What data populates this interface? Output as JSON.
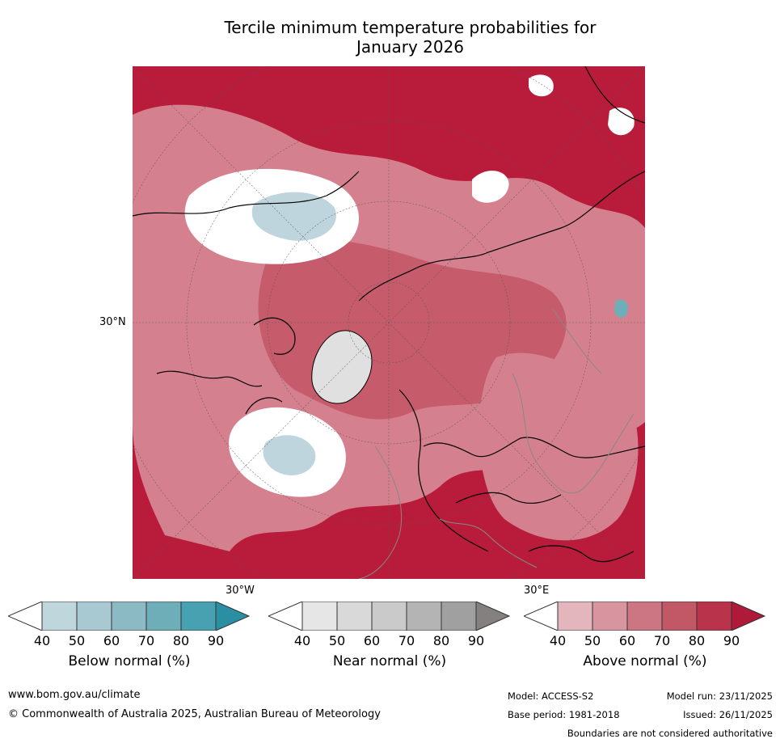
{
  "title_line1": "Tercile minimum temperature probabilities for",
  "title_line2": "January 2026",
  "map": {
    "lat_label": "30°N",
    "lon_label_west": "30°W",
    "lon_label_east": "30°E",
    "colors": {
      "ocean_base": "#b81c3a",
      "above_60": "#d5808e",
      "above_70": "#c65b6c",
      "near_normal_white": "#ffffff",
      "below_50": "#bfd5dd",
      "greenland_grey": "#e0e0e0"
    }
  },
  "colorbars": [
    {
      "label": "Below normal (%)",
      "ticks": [
        "40",
        "50",
        "60",
        "70",
        "80",
        "90"
      ],
      "colors": [
        "#ffffff",
        "#c0d6dd",
        "#a8c9d1",
        "#8cbac4",
        "#6daeb9",
        "#47a1b1",
        "#2a8fa3"
      ]
    },
    {
      "label": "Near normal (%)",
      "ticks": [
        "40",
        "50",
        "60",
        "70",
        "80",
        "90"
      ],
      "colors": [
        "#ffffff",
        "#e6e6e6",
        "#d9d9d9",
        "#cacaca",
        "#b4b4b4",
        "#a0a0a0",
        "#858080"
      ]
    },
    {
      "label": "Above normal (%)",
      "ticks": [
        "40",
        "50",
        "60",
        "70",
        "80",
        "90"
      ],
      "colors": [
        "#ffffff",
        "#e2b6bc",
        "#d8959f",
        "#cd7683",
        "#c25866",
        "#b9344a",
        "#b01a39"
      ]
    }
  ],
  "footer": {
    "website": "www.bom.gov.au/climate",
    "copyright": "© Commonwealth of Australia 2025, Australian Bureau of Meteorology",
    "model": "Model: ACCESS-S2",
    "model_run": "Model run: 23/11/2025",
    "base_period": "Base period: 1981-2018",
    "issued": "Issued: 26/11/2025",
    "disclaimer": "Boundaries are not considered authoritative"
  }
}
